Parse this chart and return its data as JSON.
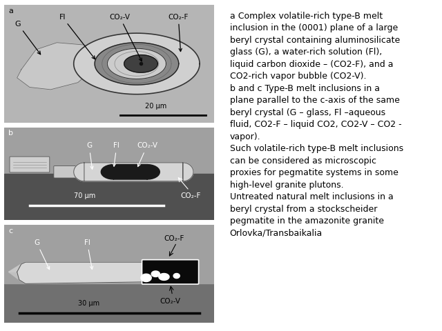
{
  "figure_bg": "#ffffff",
  "text_content": "a Complex volatile-rich type-B melt\ninclusion in the (0001) plane of a large\nberyl crystal containing aluminosilicate\nglass (G), a water-rich solution (Fl),\nliquid carbon dioxide – (CO2-F), and a\nCO2-rich vapor bubble (CO2-V).\nb and c Type-B melt inclusions in a\nplane parallel to the c-axis of the same\nberyl crystal (G – glass, Fl –aqueous\nfluid, CO2-F – liquid CO2, CO2-V – CO2 -\nvapor).\nSuch volatile-rich type-B melt inclusions\ncan be considered as microscopic\nproxies for pegmatite systems in some\nhigh-level granite plutons.\nUntreated natural melt inclusions in a\nberyl crystal from a stockscheider\npegmatite in the amazonite granite\nOrlovka/Transbaikalia",
  "text_fontsize": 9.0,
  "text_color": "#000000",
  "panel_a_bg": "#b0b0b0",
  "panel_b_bg": "#888888",
  "panel_c_bg": "#909090",
  "outer_bg": "#c8c8c8",
  "scale_a": "20 μm",
  "scale_b": "70 μm",
  "scale_c": "30 μm"
}
